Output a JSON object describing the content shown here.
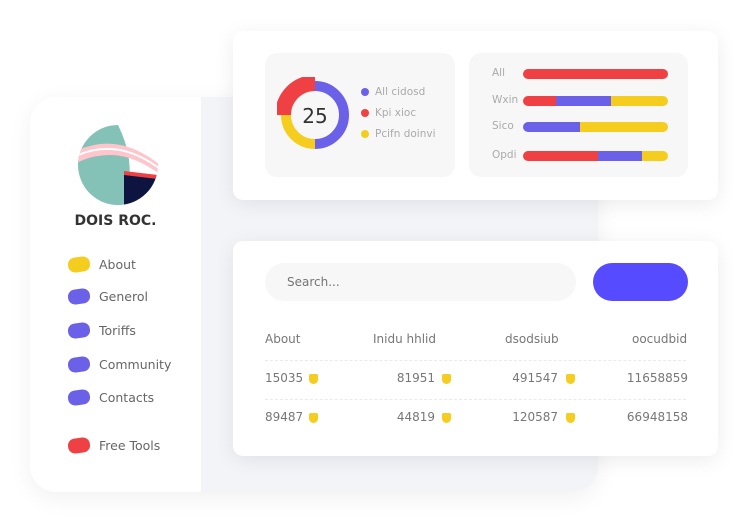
{
  "sidebar": {
    "brand": "DOIS ROC.",
    "items": [
      {
        "label": "About",
        "color": "#f5cd1f"
      },
      {
        "label": "Generol",
        "color": "#6b60e8"
      },
      {
        "label": "Toriffs",
        "color": "#6b60e8"
      },
      {
        "label": "Community",
        "color": "#6b60e8"
      },
      {
        "label": "Contacts",
        "color": "#6b60e8"
      },
      {
        "label": "Free Tools",
        "color": "#ef4043"
      }
    ]
  },
  "donut": {
    "value": "25",
    "legend": [
      {
        "label": "All cidosd",
        "color": "#6b60e8"
      },
      {
        "label": "Kpi xioc",
        "color": "#ef4043"
      },
      {
        "label": "Pcifn doinvi",
        "color": "#f5cd1f"
      }
    ],
    "segments": [
      {
        "color": "#6b60e8",
        "percent": 50
      },
      {
        "color": "#f5cd1f",
        "percent": 25
      },
      {
        "color": "#ef4043",
        "percent": 25
      }
    ]
  },
  "bars": [
    {
      "label": "All",
      "segments": [
        {
          "color": "#ef4043",
          "percent": 100
        }
      ]
    },
    {
      "label": "Wxin",
      "segments": [
        {
          "color": "#ef4043",
          "percent": 23
        },
        {
          "color": "#6b60e8",
          "percent": 38
        },
        {
          "color": "#f5cd1f",
          "percent": 39
        }
      ]
    },
    {
      "label": "Sico",
      "segments": [
        {
          "color": "#6b60e8",
          "percent": 39
        },
        {
          "color": "#f5cd1f",
          "percent": 61
        }
      ]
    },
    {
      "label": "Opdi",
      "segments": [
        {
          "color": "#ef4043",
          "percent": 52
        },
        {
          "color": "#6b60e8",
          "percent": 30
        },
        {
          "color": "#f5cd1f",
          "percent": 18
        }
      ]
    }
  ],
  "search": {
    "placeholder": "Search..."
  },
  "table": {
    "headers": [
      "About",
      "Inidu hhlid",
      "dsodsiub",
      "oocudbid"
    ],
    "rows": [
      [
        "15035",
        "81951",
        "491547",
        "11658859"
      ],
      [
        "89487",
        "44819",
        "120587",
        "66948158"
      ]
    ]
  }
}
